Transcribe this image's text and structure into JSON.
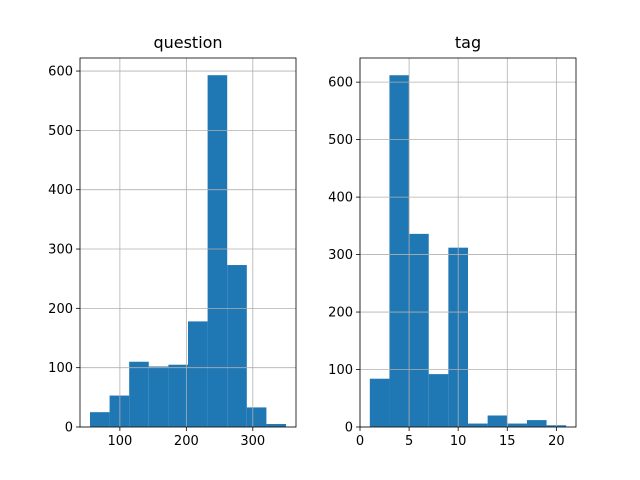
{
  "chart_data": [
    {
      "type": "bar",
      "title": "question",
      "xlabel": "",
      "ylabel": "",
      "bin_edges": [
        55,
        84.5,
        114,
        143.5,
        173,
        202.5,
        232,
        261.5,
        291,
        320.5,
        350
      ],
      "values": [
        25,
        53,
        110,
        102,
        105,
        178,
        593,
        273,
        33,
        5
      ],
      "xlim": [
        40,
        365
      ],
      "ylim": [
        0,
        622
      ],
      "xticks": [
        100,
        200,
        300
      ],
      "xtick_labels": [
        "100",
        "200",
        "300"
      ],
      "yticks": [
        0,
        100,
        200,
        300,
        400,
        500,
        600
      ],
      "ytick_labels": [
        "0",
        "100",
        "200",
        "300",
        "400",
        "500",
        "600"
      ],
      "grid": true,
      "bar_color": "#1f77b4"
    },
    {
      "type": "bar",
      "title": "tag",
      "xlabel": "",
      "ylabel": "",
      "bin_edges": [
        1,
        3,
        5,
        7,
        9,
        11,
        13,
        15,
        17,
        19,
        21
      ],
      "values": [
        84,
        612,
        336,
        92,
        312,
        6,
        20,
        6,
        12,
        3
      ],
      "xlim": [
        0,
        22
      ],
      "ylim": [
        0,
        642
      ],
      "xticks": [
        0,
        5,
        10,
        15,
        20
      ],
      "xtick_labels": [
        "0",
        "5",
        "10",
        "15",
        "20"
      ],
      "yticks": [
        0,
        100,
        200,
        300,
        400,
        500,
        600
      ],
      "ytick_labels": [
        "0",
        "100",
        "200",
        "300",
        "400",
        "500",
        "600"
      ],
      "grid": true,
      "bar_color": "#1f77b4"
    }
  ]
}
